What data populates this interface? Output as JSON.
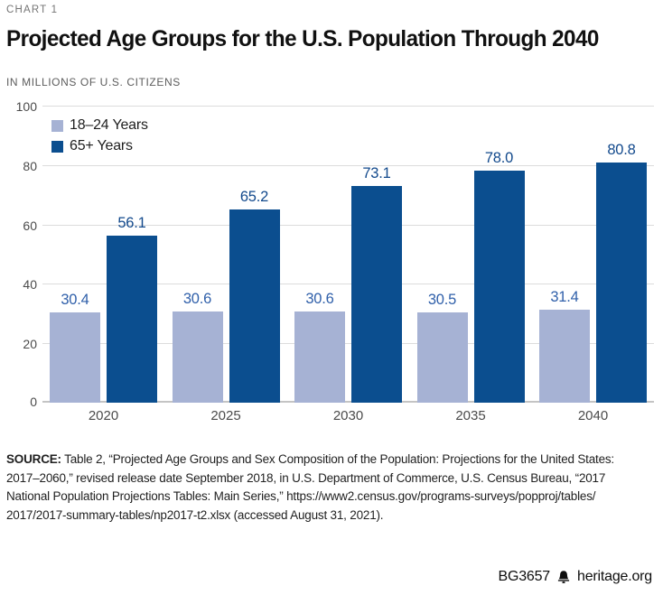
{
  "header": {
    "kicker": "CHART 1",
    "title": "Projected Age Groups for the U.S. Population Through 2040",
    "subtitle": "IN MILLIONS OF U.S. CITIZENS"
  },
  "chart_data": {
    "type": "bar",
    "categories": [
      "2020",
      "2025",
      "2030",
      "2035",
      "2040"
    ],
    "series": [
      {
        "name": "18–24 Years",
        "color": "#a6b2d4",
        "label_color": "#3060aa",
        "values": [
          30.4,
          30.6,
          30.6,
          30.5,
          31.4
        ]
      },
      {
        "name": "65+ Years",
        "color": "#0b4e8f",
        "label_color": "#12498c",
        "values": [
          56.1,
          65.2,
          73.1,
          78.0,
          80.8
        ]
      }
    ],
    "title": "Projected Age Groups for the U.S. Population Through 2040",
    "xlabel": "",
    "ylabel": "IN MILLIONS OF U.S. CITIZENS",
    "ylim": [
      0,
      100
    ],
    "y_ticks": [
      0,
      20,
      40,
      60,
      80,
      100
    ],
    "grid": "horizontal",
    "legend_position": "top-left",
    "value_labels": true,
    "value_decimals": 1
  },
  "source": {
    "label": "SOURCE:",
    "lines": [
      "Table 2, “Projected Age Groups and Sex Composition of the Population: Projections for the United States:",
      "2017–2060,” revised release date September 2018, in U.S. Department of Commerce, U.S. Census Bureau, “2017",
      "National Population Projections Tables: Main Series,” https://www2.census.gov/programs-surveys/popproj/tables/",
      "2017/2017-summary-tables/np2017-t2.xlsx (accessed August 31, 2021)."
    ]
  },
  "footer": {
    "report_id": "BG3657",
    "site": "heritage.org",
    "icon": "liberty-bell-icon"
  }
}
